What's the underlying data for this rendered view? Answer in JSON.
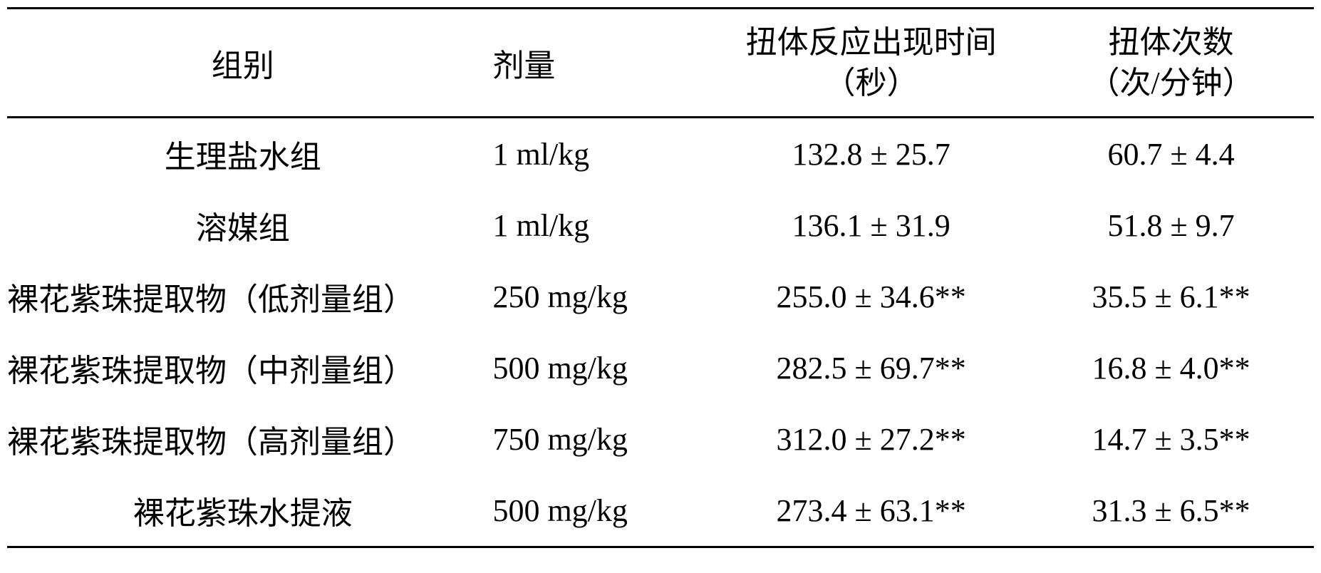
{
  "table": {
    "headers": {
      "group": "组别",
      "dose": "剂量",
      "time_line1": "扭体反应出现时间",
      "time_line2": "（秒）",
      "count_line1": "扭体次数",
      "count_line2": "（次/分钟）"
    },
    "rows": [
      {
        "group": "生理盐水组",
        "dose": "1 ml/kg",
        "time": "132.8 ± 25.7",
        "count": "60.7 ± 4.4",
        "group_align": "center"
      },
      {
        "group": "溶媒组",
        "dose": "1 ml/kg",
        "time": "136.1 ± 31.9",
        "count": "51.8 ± 9.7",
        "group_align": "center"
      },
      {
        "group": "裸花紫珠提取物（低剂量组）",
        "dose": "250 mg/kg",
        "time": "255.0 ± 34.6**",
        "count": "35.5 ± 6.1**",
        "group_align": "left"
      },
      {
        "group": "裸花紫珠提取物（中剂量组）",
        "dose": "500 mg/kg",
        "time": "282.5 ± 69.7**",
        "count": "16.8 ± 4.0**",
        "group_align": "left"
      },
      {
        "group": "裸花紫珠提取物（高剂量组）",
        "dose": "750 mg/kg",
        "time": "312.0 ± 27.2**",
        "count": "14.7 ± 3.5**",
        "group_align": "left"
      },
      {
        "group": "裸花紫珠水提液",
        "dose": "500 mg/kg",
        "time": "273.4 ± 63.1**",
        "count": "31.3 ± 6.5**",
        "group_align": "center"
      }
    ],
    "styling": {
      "border_color": "#000000",
      "border_width": 3,
      "background_color": "#ffffff",
      "text_color": "#000000",
      "font_size": 44,
      "font_family": "SimSun"
    }
  }
}
